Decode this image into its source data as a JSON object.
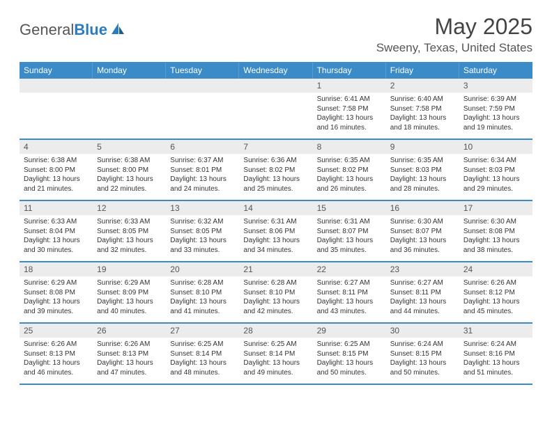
{
  "logo": {
    "general": "General",
    "blue": "Blue"
  },
  "header": {
    "month_title": "May 2025",
    "location": "Sweeny, Texas, United States"
  },
  "colors": {
    "header_bg": "#3b8bc9",
    "header_text": "#ffffff",
    "daynum_bg": "#ececec",
    "border": "#3b8bc9"
  },
  "weekdays": [
    "Sunday",
    "Monday",
    "Tuesday",
    "Wednesday",
    "Thursday",
    "Friday",
    "Saturday"
  ],
  "weeks": [
    [
      null,
      null,
      null,
      null,
      {
        "n": "1",
        "sr": "Sunrise: 6:41 AM",
        "ss": "Sunset: 7:58 PM",
        "dl": "Daylight: 13 hours and 16 minutes."
      },
      {
        "n": "2",
        "sr": "Sunrise: 6:40 AM",
        "ss": "Sunset: 7:58 PM",
        "dl": "Daylight: 13 hours and 18 minutes."
      },
      {
        "n": "3",
        "sr": "Sunrise: 6:39 AM",
        "ss": "Sunset: 7:59 PM",
        "dl": "Daylight: 13 hours and 19 minutes."
      }
    ],
    [
      {
        "n": "4",
        "sr": "Sunrise: 6:38 AM",
        "ss": "Sunset: 8:00 PM",
        "dl": "Daylight: 13 hours and 21 minutes."
      },
      {
        "n": "5",
        "sr": "Sunrise: 6:38 AM",
        "ss": "Sunset: 8:00 PM",
        "dl": "Daylight: 13 hours and 22 minutes."
      },
      {
        "n": "6",
        "sr": "Sunrise: 6:37 AM",
        "ss": "Sunset: 8:01 PM",
        "dl": "Daylight: 13 hours and 24 minutes."
      },
      {
        "n": "7",
        "sr": "Sunrise: 6:36 AM",
        "ss": "Sunset: 8:02 PM",
        "dl": "Daylight: 13 hours and 25 minutes."
      },
      {
        "n": "8",
        "sr": "Sunrise: 6:35 AM",
        "ss": "Sunset: 8:02 PM",
        "dl": "Daylight: 13 hours and 26 minutes."
      },
      {
        "n": "9",
        "sr": "Sunrise: 6:35 AM",
        "ss": "Sunset: 8:03 PM",
        "dl": "Daylight: 13 hours and 28 minutes."
      },
      {
        "n": "10",
        "sr": "Sunrise: 6:34 AM",
        "ss": "Sunset: 8:03 PM",
        "dl": "Daylight: 13 hours and 29 minutes."
      }
    ],
    [
      {
        "n": "11",
        "sr": "Sunrise: 6:33 AM",
        "ss": "Sunset: 8:04 PM",
        "dl": "Daylight: 13 hours and 30 minutes."
      },
      {
        "n": "12",
        "sr": "Sunrise: 6:33 AM",
        "ss": "Sunset: 8:05 PM",
        "dl": "Daylight: 13 hours and 32 minutes."
      },
      {
        "n": "13",
        "sr": "Sunrise: 6:32 AM",
        "ss": "Sunset: 8:05 PM",
        "dl": "Daylight: 13 hours and 33 minutes."
      },
      {
        "n": "14",
        "sr": "Sunrise: 6:31 AM",
        "ss": "Sunset: 8:06 PM",
        "dl": "Daylight: 13 hours and 34 minutes."
      },
      {
        "n": "15",
        "sr": "Sunrise: 6:31 AM",
        "ss": "Sunset: 8:07 PM",
        "dl": "Daylight: 13 hours and 35 minutes."
      },
      {
        "n": "16",
        "sr": "Sunrise: 6:30 AM",
        "ss": "Sunset: 8:07 PM",
        "dl": "Daylight: 13 hours and 36 minutes."
      },
      {
        "n": "17",
        "sr": "Sunrise: 6:30 AM",
        "ss": "Sunset: 8:08 PM",
        "dl": "Daylight: 13 hours and 38 minutes."
      }
    ],
    [
      {
        "n": "18",
        "sr": "Sunrise: 6:29 AM",
        "ss": "Sunset: 8:08 PM",
        "dl": "Daylight: 13 hours and 39 minutes."
      },
      {
        "n": "19",
        "sr": "Sunrise: 6:29 AM",
        "ss": "Sunset: 8:09 PM",
        "dl": "Daylight: 13 hours and 40 minutes."
      },
      {
        "n": "20",
        "sr": "Sunrise: 6:28 AM",
        "ss": "Sunset: 8:10 PM",
        "dl": "Daylight: 13 hours and 41 minutes."
      },
      {
        "n": "21",
        "sr": "Sunrise: 6:28 AM",
        "ss": "Sunset: 8:10 PM",
        "dl": "Daylight: 13 hours and 42 minutes."
      },
      {
        "n": "22",
        "sr": "Sunrise: 6:27 AM",
        "ss": "Sunset: 8:11 PM",
        "dl": "Daylight: 13 hours and 43 minutes."
      },
      {
        "n": "23",
        "sr": "Sunrise: 6:27 AM",
        "ss": "Sunset: 8:11 PM",
        "dl": "Daylight: 13 hours and 44 minutes."
      },
      {
        "n": "24",
        "sr": "Sunrise: 6:26 AM",
        "ss": "Sunset: 8:12 PM",
        "dl": "Daylight: 13 hours and 45 minutes."
      }
    ],
    [
      {
        "n": "25",
        "sr": "Sunrise: 6:26 AM",
        "ss": "Sunset: 8:13 PM",
        "dl": "Daylight: 13 hours and 46 minutes."
      },
      {
        "n": "26",
        "sr": "Sunrise: 6:26 AM",
        "ss": "Sunset: 8:13 PM",
        "dl": "Daylight: 13 hours and 47 minutes."
      },
      {
        "n": "27",
        "sr": "Sunrise: 6:25 AM",
        "ss": "Sunset: 8:14 PM",
        "dl": "Daylight: 13 hours and 48 minutes."
      },
      {
        "n": "28",
        "sr": "Sunrise: 6:25 AM",
        "ss": "Sunset: 8:14 PM",
        "dl": "Daylight: 13 hours and 49 minutes."
      },
      {
        "n": "29",
        "sr": "Sunrise: 6:25 AM",
        "ss": "Sunset: 8:15 PM",
        "dl": "Daylight: 13 hours and 50 minutes."
      },
      {
        "n": "30",
        "sr": "Sunrise: 6:24 AM",
        "ss": "Sunset: 8:15 PM",
        "dl": "Daylight: 13 hours and 50 minutes."
      },
      {
        "n": "31",
        "sr": "Sunrise: 6:24 AM",
        "ss": "Sunset: 8:16 PM",
        "dl": "Daylight: 13 hours and 51 minutes."
      }
    ]
  ]
}
